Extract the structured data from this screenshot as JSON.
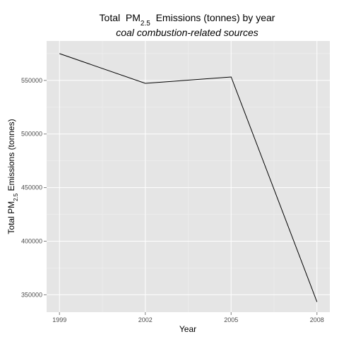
{
  "chart_data": {
    "type": "line",
    "title": {
      "prefix": "Total  PM",
      "subscript": "2.5",
      "suffix": "  Emissions (tonnes) by year"
    },
    "subtitle": "coal combustion-related sources",
    "xlabel": "Year",
    "ylabel": {
      "prefix": "Total PM",
      "subscript": "2.5",
      "suffix": " Emissions (tonnes)"
    },
    "x": [
      1999,
      2002,
      2005,
      2008
    ],
    "values": [
      575000,
      547300,
      553200,
      343400
    ],
    "xlim": [
      1998.55,
      2008.45
    ],
    "ylim": [
      333800,
      586800
    ],
    "x_ticks": [
      1999,
      2002,
      2005,
      2008
    ],
    "x_tick_labels": [
      "1999",
      "2002",
      "2005",
      "2008"
    ],
    "y_ticks": [
      350000,
      400000,
      450000,
      500000,
      550000
    ],
    "y_tick_labels": [
      "350000",
      "400000",
      "450000",
      "500000",
      "550000"
    ],
    "grid": true,
    "colors": {
      "panel": "#e5e5e5",
      "grid_major": "#ffffff",
      "grid_minor": "#f2f2f2",
      "line": "#000000"
    }
  }
}
